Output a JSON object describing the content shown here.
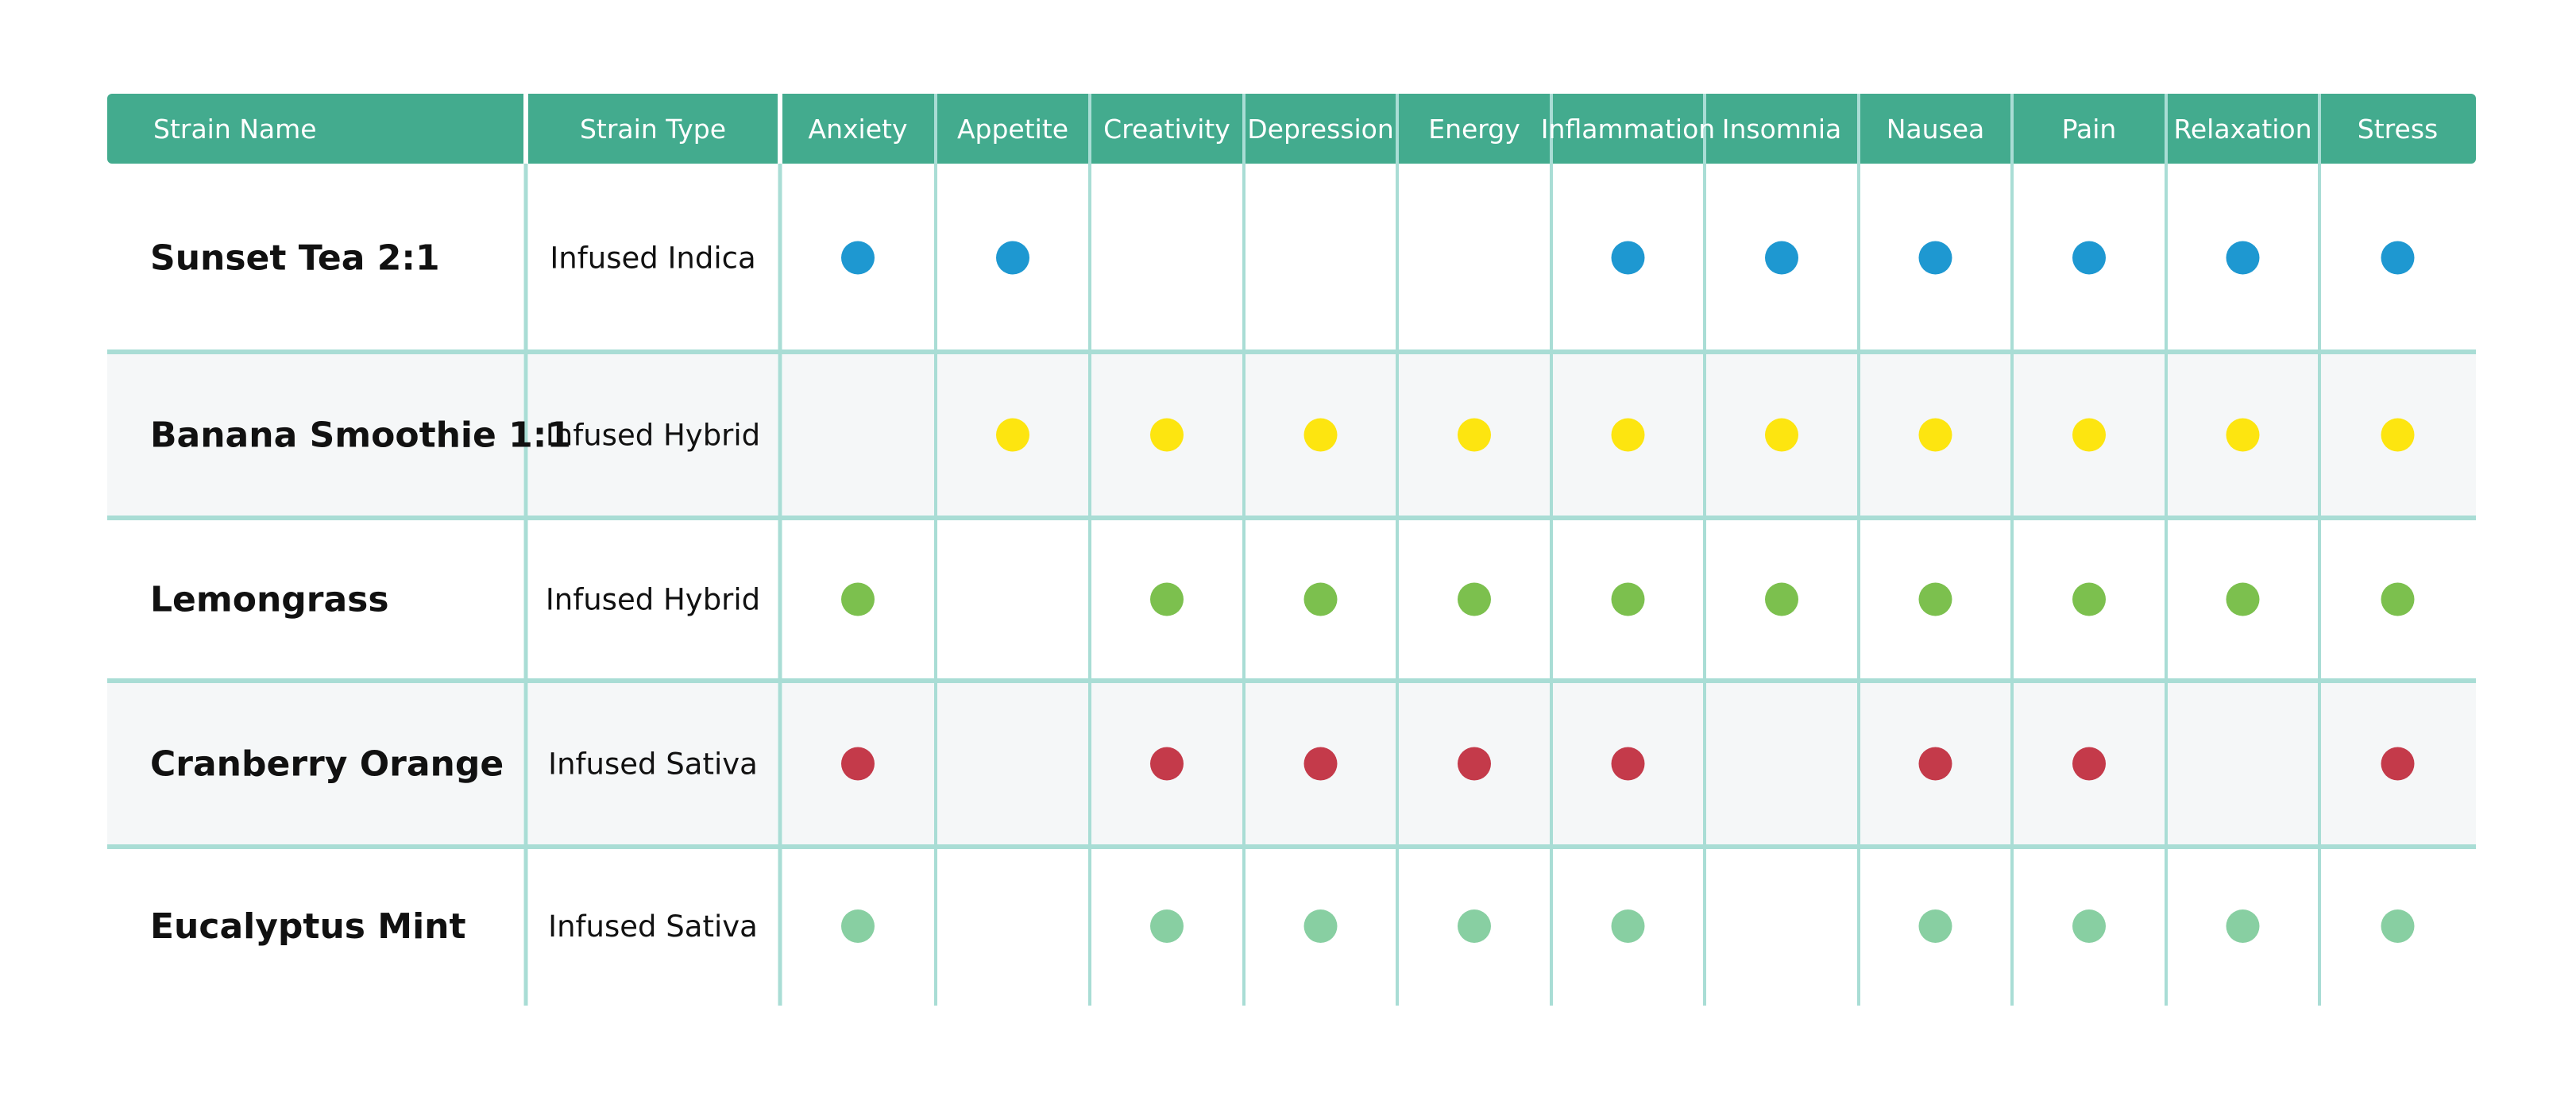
{
  "chart_data": {
    "type": "table",
    "columns": [
      "Strain Name",
      "Strain Type",
      "Anxiety",
      "Appetite",
      "Creativity",
      "Depression",
      "Energy",
      "Inflammation",
      "Insomnia",
      "Nausea",
      "Pain",
      "Relaxation",
      "Stress"
    ],
    "rows": [
      {
        "name": "Sunset Tea 2:1",
        "type": "Infused Indica",
        "color": "#1e98d1",
        "marks": [
          true,
          true,
          false,
          false,
          false,
          true,
          true,
          true,
          true,
          true,
          true
        ]
      },
      {
        "name": "Banana Smoothie 1:1",
        "type": "Infused Hybrid",
        "color": "#fde510",
        "marks": [
          false,
          true,
          true,
          true,
          true,
          true,
          true,
          true,
          true,
          true,
          true
        ]
      },
      {
        "name": "Lemongrass",
        "type": "Infused Hybrid",
        "color": "#7cc04e",
        "marks": [
          true,
          false,
          true,
          true,
          true,
          true,
          true,
          true,
          true,
          true,
          true
        ]
      },
      {
        "name": "Cranberry Orange",
        "type": "Infused Sativa",
        "color": "#c43a4a",
        "marks": [
          true,
          false,
          true,
          true,
          true,
          true,
          false,
          true,
          true,
          false,
          true
        ]
      },
      {
        "name": "Eucalyptus Mint",
        "type": "Infused Sativa",
        "color": "#88cfa2",
        "marks": [
          true,
          false,
          true,
          true,
          true,
          true,
          false,
          true,
          true,
          true,
          true
        ]
      }
    ]
  },
  "colors": {
    "header_bg": "#43ab8e",
    "grid": "#a9ddd5",
    "alt_row_bg": "#f5f7f8"
  }
}
